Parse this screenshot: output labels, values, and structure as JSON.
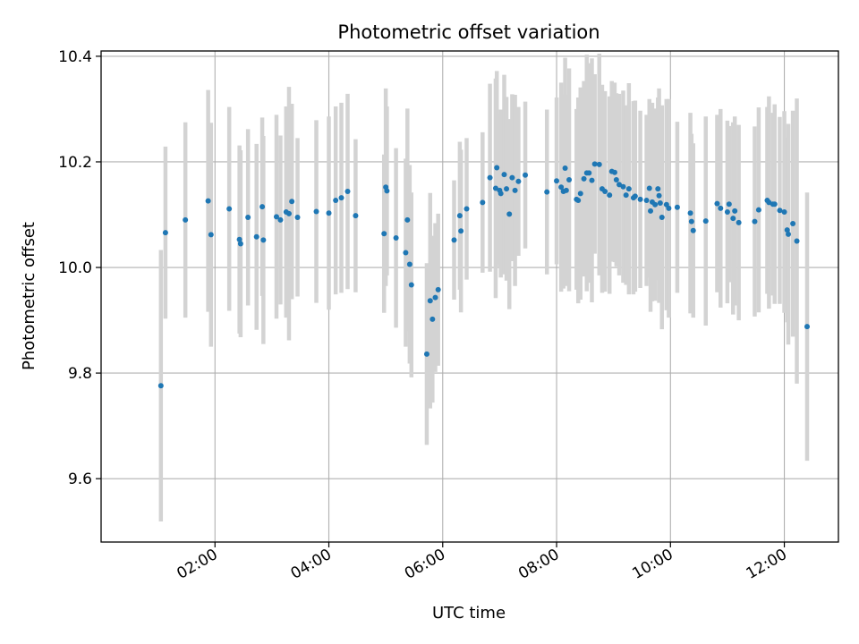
{
  "chart_data": {
    "type": "scatter",
    "title": "Photometric offset variation",
    "xlabel": "UTC time",
    "ylabel": "Photometric offset",
    "xlim_hours": [
      0.0,
      12.95
    ],
    "ylim": [
      9.48,
      10.41
    ],
    "grid": true,
    "x_ticks": [
      {
        "hours": 2,
        "label": "02:00"
      },
      {
        "hours": 4,
        "label": "04:00"
      },
      {
        "hours": 6,
        "label": "06:00"
      },
      {
        "hours": 8,
        "label": "08:00"
      },
      {
        "hours": 10,
        "label": "10:00"
      },
      {
        "hours": 12,
        "label": "12:00"
      }
    ],
    "y_ticks": [
      {
        "value": 9.6,
        "label": "9.6"
      },
      {
        "value": 9.8,
        "label": "9.8"
      },
      {
        "value": 10.0,
        "label": "10.0"
      },
      {
        "value": 10.2,
        "label": "10.2"
      },
      {
        "value": 10.4,
        "label": "10.4"
      }
    ],
    "colors": {
      "point": "#1f77b4",
      "errorbar": "#d3d3d3",
      "grid": "#b0b0b0",
      "axis": "#000000"
    },
    "series": [
      {
        "name": "offset",
        "x_hours": [
          1.05,
          1.13,
          1.48,
          1.88,
          1.93,
          2.25,
          2.43,
          2.45,
          2.58,
          2.73,
          2.83,
          2.85,
          3.08,
          3.15,
          3.25,
          3.3,
          3.35,
          3.45,
          3.78,
          4.0,
          4.12,
          4.22,
          4.33,
          4.47,
          4.97,
          5.0,
          5.02,
          5.18,
          5.35,
          5.38,
          5.42,
          5.45,
          5.72,
          5.78,
          5.82,
          5.87,
          5.92,
          6.2,
          6.3,
          6.32,
          6.42,
          6.7,
          6.83,
          6.93,
          6.95,
          7.0,
          7.02,
          7.08,
          7.12,
          7.17,
          7.22,
          7.27,
          7.33,
          7.45,
          7.83,
          8.0,
          8.08,
          8.12,
          8.15,
          8.17,
          8.22,
          8.35,
          8.38,
          8.42,
          8.48,
          8.53,
          8.57,
          8.62,
          8.67,
          8.75,
          8.8,
          8.85,
          8.93,
          8.97,
          9.02,
          9.05,
          9.1,
          9.17,
          9.22,
          9.27,
          9.35,
          9.38,
          9.47,
          9.58,
          9.63,
          9.65,
          9.68,
          9.73,
          9.78,
          9.8,
          9.82,
          9.85,
          9.93,
          9.97,
          10.12,
          10.35,
          10.37,
          10.4,
          10.62,
          10.82,
          10.88,
          11.0,
          11.03,
          11.1,
          11.13,
          11.2,
          11.48,
          11.55,
          11.7,
          11.73,
          11.8,
          11.83,
          11.92,
          12.0,
          12.05,
          12.07,
          12.15,
          12.22,
          12.4
        ],
        "y": [
          9.776,
          10.066,
          10.09,
          10.126,
          10.062,
          10.111,
          10.053,
          10.045,
          10.095,
          10.058,
          10.115,
          10.052,
          10.096,
          10.09,
          10.105,
          10.102,
          10.125,
          10.095,
          10.106,
          10.103,
          10.127,
          10.132,
          10.144,
          10.098,
          10.064,
          10.152,
          10.145,
          10.056,
          10.028,
          10.09,
          10.006,
          9.967,
          9.836,
          9.937,
          9.902,
          9.943,
          9.958,
          10.052,
          10.098,
          10.069,
          10.111,
          10.123,
          10.17,
          10.15,
          10.189,
          10.146,
          10.14,
          10.176,
          10.149,
          10.101,
          10.17,
          10.146,
          10.163,
          10.175,
          10.143,
          10.164,
          10.152,
          10.144,
          10.188,
          10.146,
          10.166,
          10.129,
          10.127,
          10.14,
          10.168,
          10.179,
          10.179,
          10.165,
          10.196,
          10.195,
          10.149,
          10.144,
          10.137,
          10.182,
          10.18,
          10.166,
          10.157,
          10.153,
          10.137,
          10.149,
          10.132,
          10.135,
          10.129,
          10.127,
          10.15,
          10.107,
          10.124,
          10.119,
          10.149,
          10.136,
          10.122,
          10.095,
          10.119,
          10.112,
          10.114,
          10.103,
          10.087,
          10.07,
          10.088,
          10.121,
          10.112,
          10.105,
          10.12,
          10.093,
          10.107,
          10.085,
          10.087,
          10.109,
          10.127,
          10.123,
          10.12,
          10.12,
          10.108,
          10.105,
          10.071,
          10.063,
          10.083,
          10.05,
          9.888
        ],
        "err": [
          0.257,
          0.163,
          0.185,
          0.21,
          0.212,
          0.193,
          0.178,
          0.177,
          0.167,
          0.176,
          0.169,
          0.197,
          0.193,
          0.16,
          0.2,
          0.24,
          0.185,
          0.15,
          0.173,
          0.183,
          0.178,
          0.18,
          0.185,
          0.145,
          0.15,
          0.187,
          0.16,
          0.17,
          0.178,
          0.211,
          0.188,
          0.175,
          0.172,
          0.204,
          0.158,
          0.141,
          0.144,
          0.113,
          0.14,
          0.154,
          0.134,
          0.133,
          0.178,
          0.208,
          0.183,
          0.146,
          0.159,
          0.189,
          0.174,
          0.18,
          0.158,
          0.181,
          0.141,
          0.139,
          0.156,
          0.158,
          0.198,
          0.184,
          0.209,
          0.181,
          0.211,
          0.171,
          0.195,
          0.201,
          0.185,
          0.224,
          0.208,
          0.231,
          0.17,
          0.21,
          0.197,
          0.19,
          0.187,
          0.171,
          0.17,
          0.164,
          0.172,
          0.182,
          0.17,
          0.2,
          0.183,
          0.181,
          0.168,
          0.162,
          0.169,
          0.191,
          0.188,
          0.182,
          0.173,
          0.203,
          0.18,
          0.212,
          0.2,
          0.207,
          0.162,
          0.19,
          0.166,
          0.165,
          0.198,
          0.168,
          0.188,
          0.173,
          0.148,
          0.182,
          0.179,
          0.185,
          0.18,
          0.194,
          0.177,
          0.201,
          0.173,
          0.189,
          0.177,
          0.191,
          0.175,
          0.209,
          0.214,
          0.27,
          0.254
        ]
      }
    ]
  }
}
